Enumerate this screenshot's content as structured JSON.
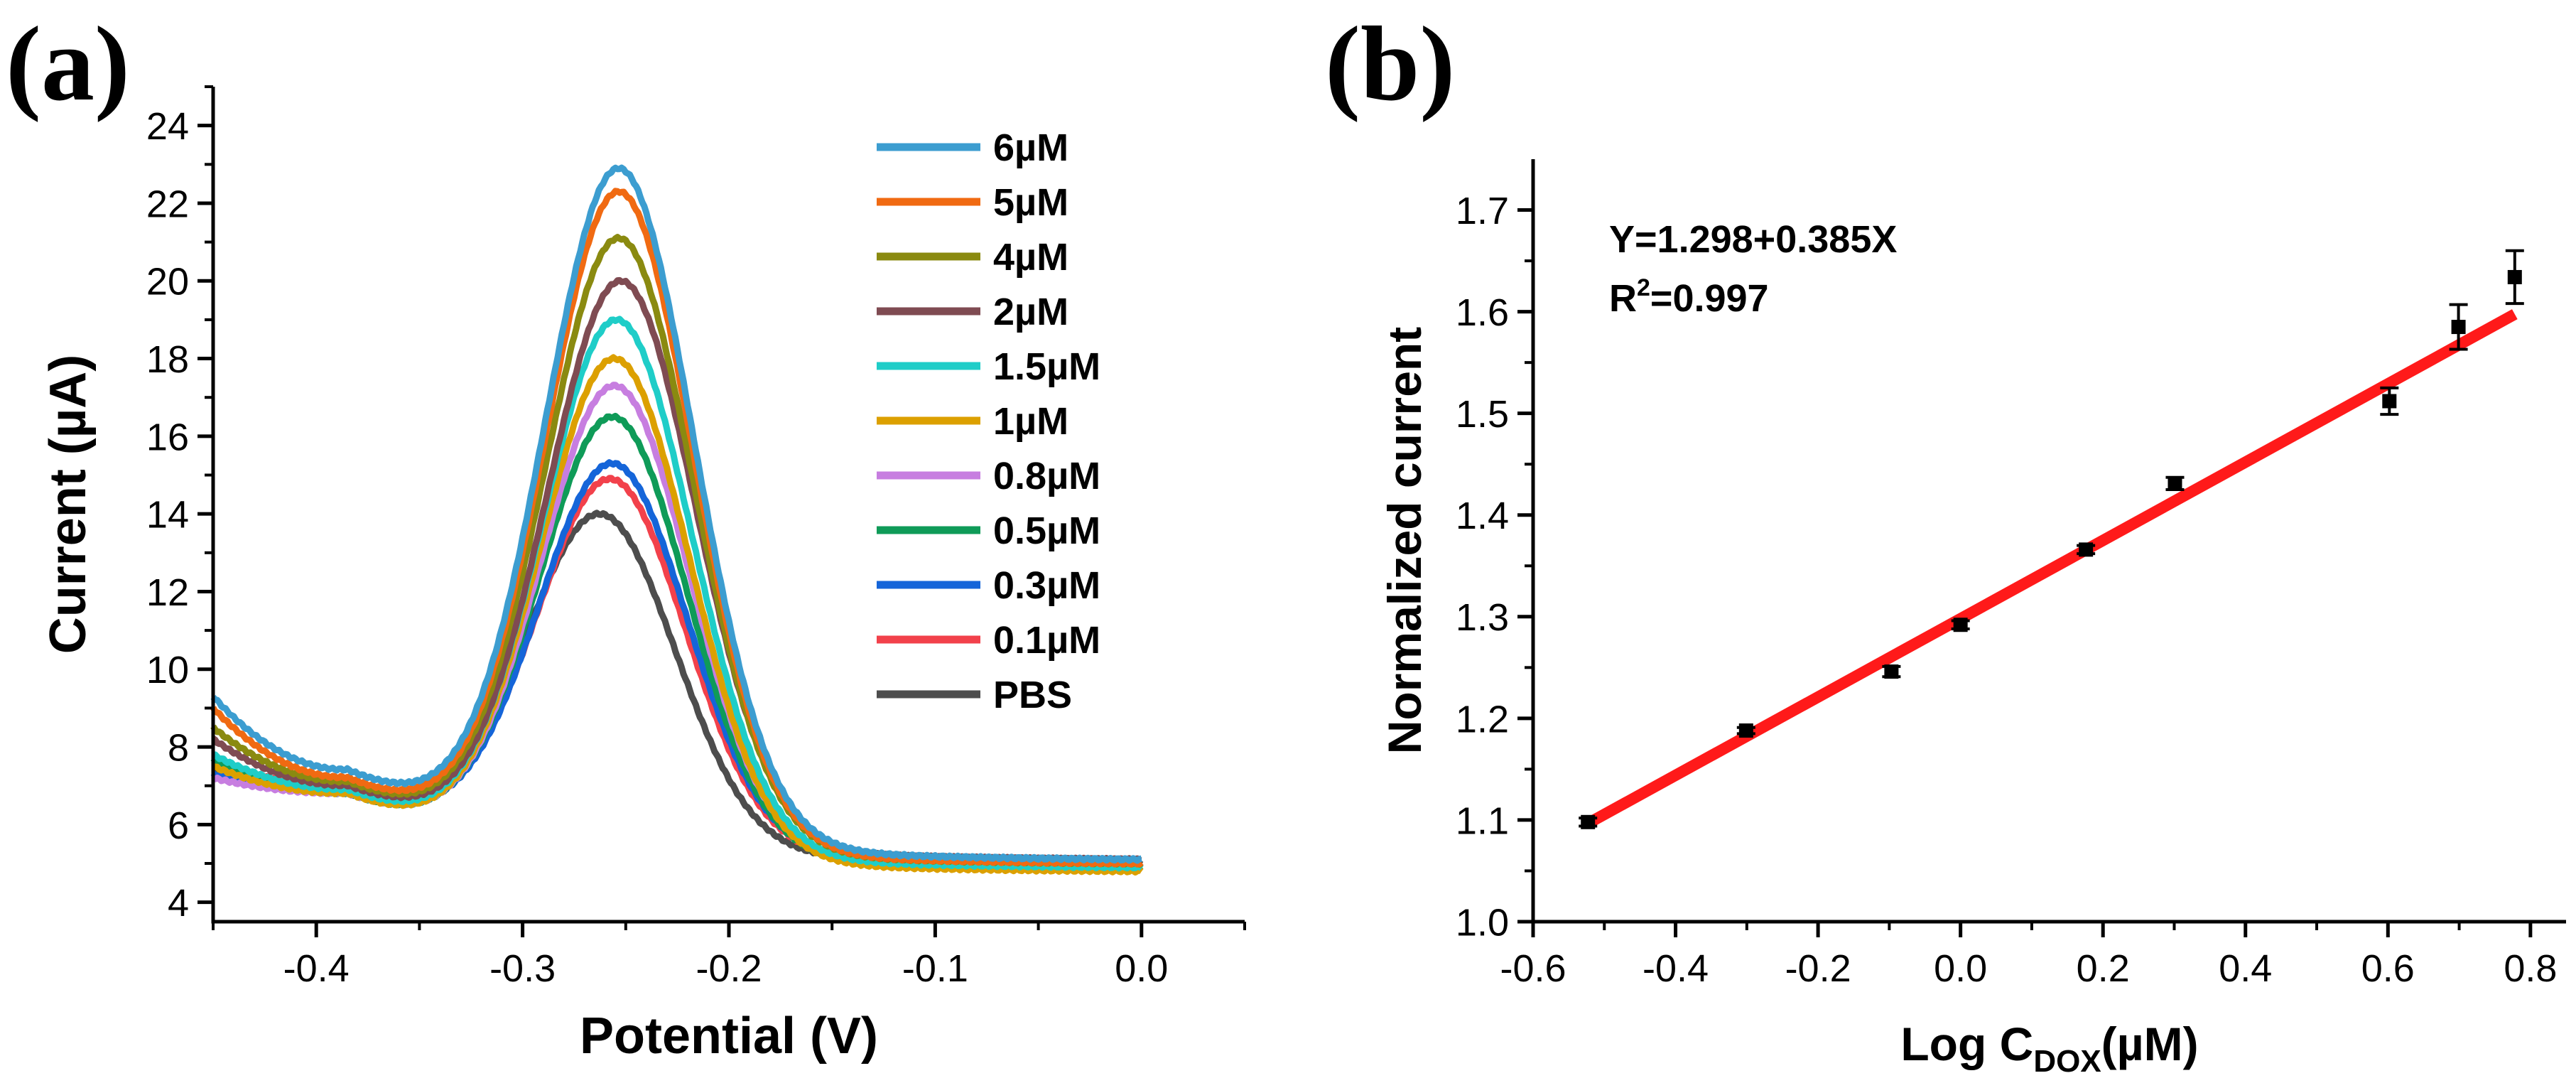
{
  "panels": {
    "a": {
      "label": "(a)"
    },
    "b": {
      "label": "(b)"
    }
  },
  "chart_data": [
    {
      "type": "line",
      "panel": "(a)",
      "title": "",
      "xlabel": "Potential (V)",
      "ylabel": "Current (µA)",
      "xlim": [
        -0.45,
        0.05
      ],
      "ylim": [
        3.5,
        25
      ],
      "xticks": [
        -0.4,
        -0.3,
        -0.2,
        -0.1,
        0.0
      ],
      "xtick_labels": [
        "-0.4",
        "-0.3",
        "-0.2",
        "-0.1",
        "0.0"
      ],
      "yticks": [
        4,
        6,
        8,
        10,
        12,
        14,
        16,
        18,
        20,
        22,
        24
      ],
      "ytick_labels": [
        "4",
        "6",
        "8",
        "10",
        "12",
        "14",
        "16",
        "18",
        "20",
        "22",
        "24"
      ],
      "legend_position": "top-right",
      "curve_model": "baseline + gaussian peak",
      "series": [
        {
          "name": "PBS",
          "color": "#4d4d4d",
          "peak": 14.0,
          "peak_x": -0.262,
          "start": 7.4,
          "valley": 6.9,
          "valley_x": -0.385,
          "tail": 5.0
        },
        {
          "name": "0.1µM",
          "color": "#f2414b",
          "peak": 14.9,
          "peak_x": -0.257,
          "start": 7.6,
          "valley": 7.0,
          "valley_x": -0.385,
          "tail": 5.0
        },
        {
          "name": "0.3µM",
          "color": "#1565d9",
          "peak": 15.3,
          "peak_x": -0.256,
          "start": 7.3,
          "valley": 6.9,
          "valley_x": -0.385,
          "tail": 5.0
        },
        {
          "name": "0.5µM",
          "color": "#0f9b58",
          "peak": 16.5,
          "peak_x": -0.256,
          "start": 7.7,
          "valley": 6.8,
          "valley_x": -0.385,
          "tail": 4.9
        },
        {
          "name": "0.8µM",
          "color": "#c77ee0",
          "peak": 17.3,
          "peak_x": -0.255,
          "start": 7.2,
          "valley": 6.8,
          "valley_x": -0.385,
          "tail": 4.9
        },
        {
          "name": "1µM",
          "color": "#dca000",
          "peak": 18.0,
          "peak_x": -0.255,
          "start": 7.5,
          "valley": 6.8,
          "valley_x": -0.385,
          "tail": 4.8
        },
        {
          "name": "1.5µM",
          "color": "#1fcdc8",
          "peak": 19.0,
          "peak_x": -0.254,
          "start": 7.8,
          "valley": 6.9,
          "valley_x": -0.385,
          "tail": 4.9
        },
        {
          "name": "2µM",
          "color": "#7f4b52",
          "peak": 20.0,
          "peak_x": -0.252,
          "start": 8.2,
          "valley": 7.0,
          "valley_x": -0.385,
          "tail": 5.1
        },
        {
          "name": "4µM",
          "color": "#8a8a10",
          "peak": 21.1,
          "peak_x": -0.253,
          "start": 8.5,
          "valley": 7.1,
          "valley_x": -0.385,
          "tail": 5.0
        },
        {
          "name": "5µM",
          "color": "#f06a12",
          "peak": 22.3,
          "peak_x": -0.253,
          "start": 9.0,
          "valley": 7.2,
          "valley_x": -0.385,
          "tail": 5.0
        },
        {
          "name": "6µM",
          "color": "#3c9dd0",
          "peak": 22.9,
          "peak_x": -0.253,
          "start": 9.3,
          "valley": 7.4,
          "valley_x": -0.385,
          "tail": 5.1
        }
      ],
      "legend_order": [
        "6µM",
        "5µM",
        "4µM",
        "2µM",
        "1.5µM",
        "1µM",
        "0.8µM",
        "0.5µM",
        "0.3µM",
        "0.1µM",
        "PBS"
      ]
    },
    {
      "type": "scatter",
      "panel": "(b)",
      "title": "",
      "xlabel_main": "Log C",
      "xlabel_sub": "DOX",
      "xlabel_tail": "(µM)",
      "ylabel": "Normalized current",
      "xlim": [
        -0.6,
        0.85
      ],
      "ylim": [
        1.0,
        1.75
      ],
      "xticks": [
        -0.6,
        -0.4,
        -0.2,
        0.0,
        0.2,
        0.4,
        0.6,
        0.8
      ],
      "xtick_labels": [
        "-0.6",
        "-0.4",
        "-0.2",
        "0.0",
        "0.2",
        "0.4",
        "0.6",
        "0.8"
      ],
      "yticks": [
        1.0,
        1.1,
        1.2,
        1.3,
        1.4,
        1.5,
        1.6,
        1.7
      ],
      "ytick_labels": [
        "1.0",
        "1.1",
        "1.2",
        "1.3",
        "1.4",
        "1.5",
        "1.6",
        "1.7"
      ],
      "points": [
        {
          "x": -0.523,
          "y": 1.098,
          "err": 0.004
        },
        {
          "x": -0.301,
          "y": 1.188,
          "err": 0.003
        },
        {
          "x": -0.097,
          "y": 1.246,
          "err": 0.005
        },
        {
          "x": 0.0,
          "y": 1.292,
          "err": 0.004
        },
        {
          "x": 0.176,
          "y": 1.366,
          "err": 0.004
        },
        {
          "x": 0.301,
          "y": 1.431,
          "err": 0.006
        },
        {
          "x": 0.602,
          "y": 1.512,
          "err": 0.013
        },
        {
          "x": 0.699,
          "y": 1.585,
          "err": 0.022
        },
        {
          "x": 0.778,
          "y": 1.634,
          "err": 0.026
        }
      ],
      "fit": {
        "intercept": 1.298,
        "slope": 0.385,
        "x_range": [
          -0.523,
          0.778
        ],
        "color": "#ff1a1a"
      },
      "equation": "Y=1.298+0.385X",
      "r2_prefix": "R",
      "r2_sup": "2",
      "r2_value": "=0.997"
    }
  ]
}
